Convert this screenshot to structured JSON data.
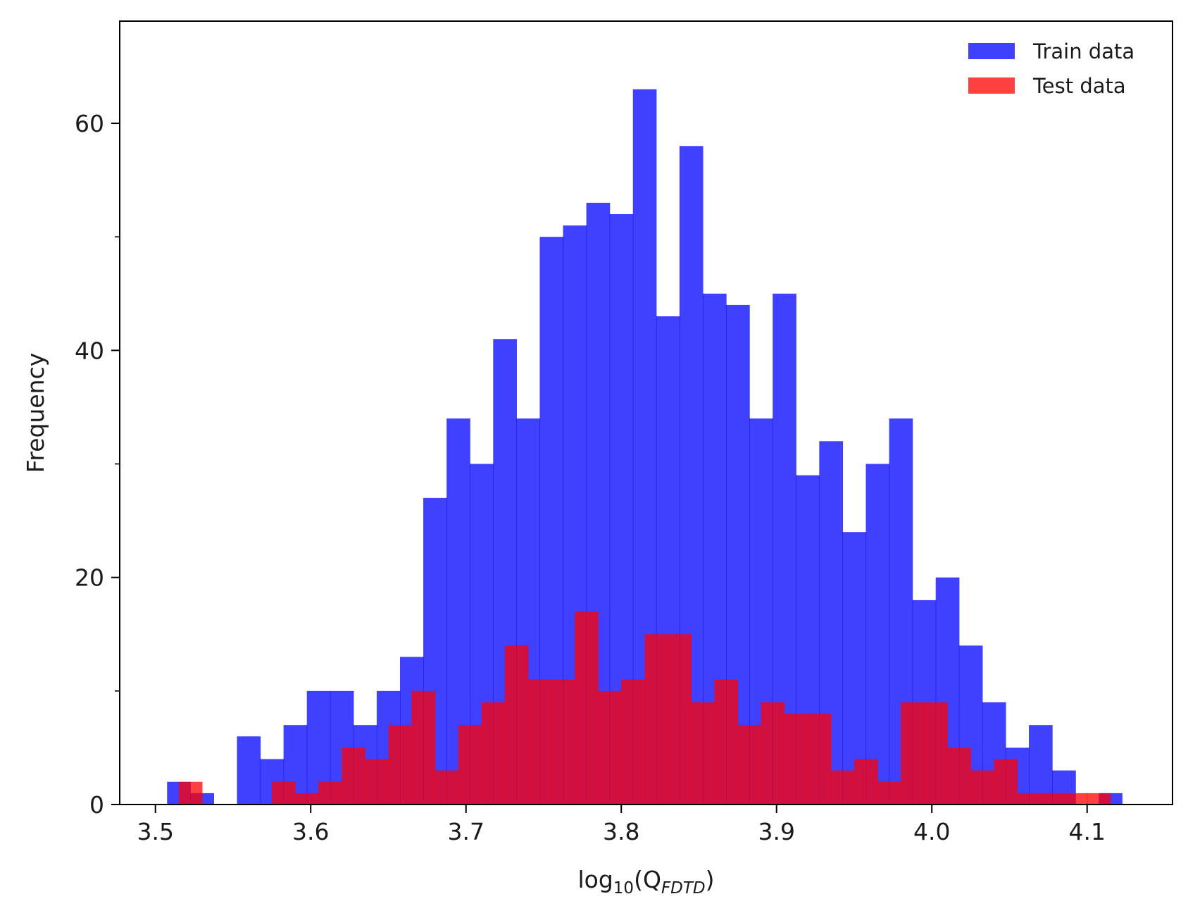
{
  "chart_data": {
    "type": "histogram",
    "xlabel": {
      "base": "log",
      "sub": "10",
      "open": "(Q",
      "sub2": "FDTD",
      "close": ")"
    },
    "ylabel": "Frequency",
    "xlim": [
      3.477,
      4.155
    ],
    "ylim": [
      0,
      69
    ],
    "xticks": [
      3.5,
      3.6,
      3.7,
      3.8,
      3.9,
      4.0,
      4.1
    ],
    "xtick_labels": [
      "3.5",
      "3.6",
      "3.7",
      "3.8",
      "3.9",
      "4.0",
      "4.1"
    ],
    "yticks_major": [
      0,
      20,
      40,
      60
    ],
    "ytick_labels": [
      "0",
      "20",
      "40",
      "60"
    ],
    "yticks_minor": [
      10,
      30,
      50
    ],
    "legend_position": "top-right",
    "series": [
      {
        "name": "Train data",
        "color": "#0000ff",
        "opacity": 0.75,
        "bin_start": 3.5075,
        "bin_width": 0.015,
        "counts": [
          2,
          1,
          0,
          6,
          4,
          7,
          10,
          10,
          7,
          10,
          13,
          27,
          34,
          30,
          41,
          34,
          50,
          51,
          53,
          52,
          63,
          43,
          58,
          45,
          44,
          34,
          45,
          29,
          32,
          24,
          30,
          34,
          18,
          20,
          14,
          9,
          5,
          7,
          3,
          0,
          1
        ]
      },
      {
        "name": "Test data",
        "color": "#ff0000",
        "opacity": 0.75,
        "bin_start": 3.515,
        "bin_width": 0.015,
        "counts": [
          2,
          0,
          0,
          0,
          2,
          1,
          2,
          5,
          4,
          7,
          10,
          3,
          7,
          9,
          14,
          11,
          11,
          17,
          10,
          11,
          15,
          15,
          9,
          11,
          7,
          9,
          8,
          8,
          3,
          4,
          2,
          9,
          9,
          5,
          3,
          4,
          1,
          1,
          1,
          1
        ]
      }
    ]
  }
}
